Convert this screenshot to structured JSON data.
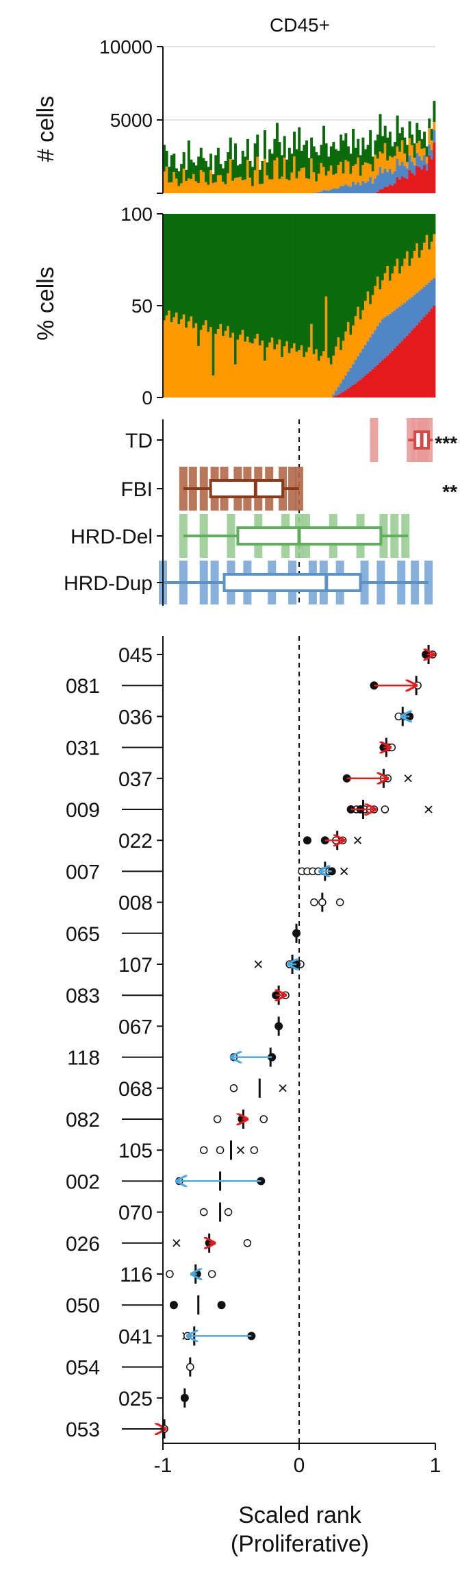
{
  "chart_data": [
    {
      "type": "bar",
      "title": "CD45+",
      "ylabel": "# cells",
      "ylim": [
        0,
        10000
      ],
      "yticks": [
        {
          "value": 0,
          "label": ""
        },
        {
          "value": 5000,
          "label": "5000"
        },
        {
          "value": 10000,
          "label": "10000"
        }
      ],
      "grid": true,
      "stacked": true,
      "series_colors": [
        "#E41A1C",
        "#4E86C6",
        "#FF9900",
        "#0B6B0B"
      ],
      "totals": [
        3300,
        2900,
        1800,
        2600,
        2700,
        1700,
        1500,
        2000,
        2800,
        1600,
        3600,
        2300,
        2100,
        1900,
        2500,
        3100,
        2400,
        2200,
        1800,
        2700,
        1300,
        2600,
        3100,
        2000,
        1700,
        2200,
        2800,
        3800,
        2300,
        3400,
        1900,
        2000,
        2900,
        2500,
        3700,
        2200,
        1800,
        3400,
        4000,
        1600,
        2200,
        4300,
        2100,
        3000,
        2700,
        3700,
        4800,
        3500,
        2600,
        3900,
        2300,
        3100,
        2700,
        4200,
        3000,
        4500,
        2900,
        3300,
        3600,
        2400,
        3800,
        3200,
        2800,
        2600,
        3300,
        4600,
        3400,
        2500,
        3200,
        3500,
        3000,
        2900,
        4000,
        3600,
        4100,
        3200,
        2700,
        4400,
        3100,
        3700,
        2600,
        3800,
        3000,
        3300,
        4300,
        2500,
        3600,
        4000,
        5400,
        3900,
        4600,
        3800,
        4200,
        3200,
        3500,
        5300,
        4100,
        4500,
        3800,
        3300,
        4900,
        4000,
        3400,
        4800,
        4300,
        3700,
        4200,
        3200,
        5100,
        4400,
        6300
      ]
    },
    {
      "type": "bar",
      "ylabel": "% cells",
      "ylim": [
        0,
        100
      ],
      "yticks": [
        {
          "value": 0,
          "label": "0"
        },
        {
          "value": 50,
          "label": "50"
        },
        {
          "value": 100,
          "label": "100"
        }
      ],
      "stacked": true,
      "series_colors": [
        "#E41A1C",
        "#4E86C6",
        "#FF9900",
        "#0B6B0B"
      ],
      "orange_top": [
        44,
        44,
        43,
        44,
        40,
        39,
        37,
        36,
        35,
        34,
        32,
        29,
        31,
        27,
        26,
        25,
        24,
        22,
        21,
        20,
        9,
        18,
        16,
        15,
        15,
        14,
        13,
        12,
        11,
        8,
        8,
        11,
        10,
        10,
        10,
        9,
        9,
        8,
        8,
        7,
        8,
        9,
        7,
        7,
        6,
        6,
        6,
        6,
        5,
        5,
        5,
        5,
        5,
        5,
        5,
        5,
        5,
        5,
        5,
        4,
        4,
        4,
        4,
        4,
        4,
        4,
        4,
        4,
        4,
        4,
        4,
        4,
        4,
        4,
        4,
        4,
        4,
        4,
        4,
        4,
        4,
        4,
        4,
        4,
        4,
        4,
        4,
        4,
        4,
        4,
        4,
        4,
        4,
        4,
        4,
        4,
        4,
        4,
        4,
        4,
        4,
        4,
        4,
        4,
        4,
        4,
        4,
        4,
        4,
        4,
        4
      ],
      "dips": [
        [
          9,
          38
        ],
        [
          14,
          28
        ],
        [
          20,
          12
        ],
        [
          29,
          18
        ],
        [
          35,
          30
        ],
        [
          41,
          20
        ],
        [
          48,
          22
        ],
        [
          54,
          25
        ],
        [
          60,
          40
        ],
        [
          66,
          55
        ]
      ],
      "tail_start": 68
    },
    {
      "type": "box",
      "xlim": [
        -1,
        1
      ],
      "categories": [
        "TD",
        "FBI",
        "HRD-Del",
        "HRD-Dup"
      ],
      "significance": [
        "***",
        "**",
        "",
        ""
      ],
      "colors": [
        "#D44A47",
        "#8B3A1A",
        "#5DAF5B",
        "#5B93C8"
      ],
      "fill_colors": [
        "#E89A97",
        "#B36848",
        "#9ACD93",
        "#7AA9D6"
      ],
      "boxes": [
        {
          "min": 0.8,
          "q1": 0.85,
          "median": 0.9,
          "q3": 0.95,
          "max": 0.98
        },
        {
          "min": -0.85,
          "q1": -0.65,
          "median": -0.32,
          "q3": -0.12,
          "max": 0.0
        },
        {
          "min": -0.85,
          "q1": -0.45,
          "median": 0.0,
          "q3": 0.6,
          "max": 0.8
        },
        {
          "min": -1.0,
          "q1": -0.55,
          "median": 0.2,
          "q3": 0.45,
          "max": 0.95
        }
      ],
      "strips": [
        [
          0.55,
          0.82,
          0.86,
          0.9,
          0.92,
          0.95
        ],
        [
          -0.85,
          -0.78,
          -0.7,
          -0.62,
          -0.55,
          -0.45,
          -0.38,
          -0.3,
          -0.22,
          -0.12,
          -0.05,
          0.0
        ],
        [
          -0.85,
          -0.7,
          -0.5,
          -0.3,
          -0.1,
          0.0,
          0.05,
          0.25,
          0.45,
          0.62,
          0.7,
          0.78
        ],
        [
          -1.0,
          -0.85,
          -0.7,
          -0.62,
          -0.5,
          -0.38,
          -0.2,
          -0.05,
          0.1,
          0.18,
          0.3,
          0.48,
          0.6,
          0.75,
          0.85,
          0.95
        ]
      ]
    },
    {
      "type": "scatter",
      "xlabel": "Scaled rank\n(Proliferative)",
      "xlim": [
        -1,
        1
      ],
      "xticks": [
        {
          "value": -1,
          "label": "-1"
        },
        {
          "value": 0,
          "label": "0"
        },
        {
          "value": 1,
          "label": "1"
        }
      ],
      "categories": [
        "045",
        "081",
        "036",
        "031",
        "037",
        "009",
        "022",
        "007",
        "008",
        "065",
        "107",
        "083",
        "067",
        "118",
        "068",
        "082",
        "105",
        "002",
        "070",
        "026",
        "116",
        "050",
        "041",
        "054",
        "025",
        "053"
      ],
      "arrow_colors": {
        "red": "#E41A1C",
        "blue": "#4AA7E0"
      },
      "rows": [
        {
          "median": 0.95,
          "filled": [
            0.93
          ],
          "open": [
            0.98
          ],
          "x": [],
          "arrow": [
            0.94,
            0.99,
            "red"
          ]
        },
        {
          "median": 0.86,
          "filled": [
            0.55
          ],
          "open": [
            0.87
          ],
          "x": [],
          "arrow": [
            0.55,
            0.86,
            "red"
          ]
        },
        {
          "median": 0.76,
          "filled": [
            0.81
          ],
          "open": [
            0.73,
            0.77
          ],
          "x": [],
          "arrow": [
            0.81,
            0.75,
            "blue"
          ]
        },
        {
          "median": 0.64,
          "filled": [
            0.62
          ],
          "open": [
            0.66,
            0.68
          ],
          "x": [],
          "arrow": [
            0.62,
            0.67,
            "red"
          ]
        },
        {
          "median": 0.62,
          "filled": [
            0.35
          ],
          "open": [
            0.62,
            0.65
          ],
          "x": [
            0.8
          ],
          "arrow": [
            0.35,
            0.65,
            "red"
          ]
        },
        {
          "median": 0.47,
          "filled": [
            0.38,
            0.45
          ],
          "open": [
            0.42,
            0.48,
            0.52,
            0.55,
            0.63
          ],
          "x": [
            0.95
          ],
          "arrow": [
            0.38,
            0.56,
            "red"
          ]
        },
        {
          "median": 0.28,
          "filled": [
            0.06,
            0.19
          ],
          "open": [
            0.27,
            0.32
          ],
          "x": [
            0.43
          ],
          "arrow": [
            0.19,
            0.33,
            "red"
          ]
        },
        {
          "median": 0.19,
          "filled": [
            0.24
          ],
          "open": [
            0.02,
            0.06,
            0.1,
            0.14,
            0.18,
            0.22
          ],
          "x": [
            0.33
          ],
          "arrow": [
            0.24,
            0.15,
            "blue"
          ]
        },
        {
          "median": 0.17,
          "filled": [],
          "open": [
            0.11,
            0.17,
            0.3
          ],
          "x": []
        },
        {
          "median": -0.02,
          "filled": [
            -0.02
          ],
          "open": [],
          "x": []
        },
        {
          "median": -0.05,
          "filled": [
            -0.02
          ],
          "open": [
            -0.07,
            0.01
          ],
          "x": [
            -0.3
          ],
          "arrow": [
            -0.02,
            -0.08,
            "blue"
          ]
        },
        {
          "median": -0.15,
          "filled": [
            -0.17
          ],
          "open": [
            -0.14,
            -0.1
          ],
          "x": [],
          "arrow": [
            -0.17,
            -0.1,
            "red"
          ]
        },
        {
          "median": -0.15,
          "filled": [
            -0.15
          ],
          "open": [],
          "x": []
        },
        {
          "median": -0.21,
          "filled": [
            -0.2
          ],
          "open": [
            -0.48
          ],
          "x": [],
          "arrow": [
            -0.2,
            -0.5,
            "blue"
          ]
        },
        {
          "median": -0.29,
          "filled": [],
          "open": [
            -0.48
          ],
          "x": [
            -0.12
          ],
          "arrow": []
        },
        {
          "median": -0.41,
          "filled": [
            -0.42
          ],
          "open": [
            -0.6,
            -0.26
          ],
          "x": [],
          "arrow": [
            -0.42,
            -0.38,
            "red"
          ]
        },
        {
          "median": -0.5,
          "filled": [],
          "open": [
            -0.7,
            -0.58,
            -0.33
          ],
          "x": [
            -0.43
          ]
        },
        {
          "median": -0.58,
          "filled": [
            -0.28
          ],
          "open": [
            -0.88
          ],
          "x": [],
          "arrow": [
            -0.28,
            -0.9,
            "blue"
          ]
        },
        {
          "median": -0.58,
          "filled": [],
          "open": [
            -0.7,
            -0.52
          ],
          "x": []
        },
        {
          "median": -0.66,
          "filled": [
            -0.66
          ],
          "open": [
            -0.38
          ],
          "x": [
            -0.9
          ],
          "arrow": [
            -0.66,
            -0.62,
            "red"
          ]
        },
        {
          "median": -0.76,
          "filled": [
            -0.75
          ],
          "open": [
            -0.95,
            -0.64
          ],
          "x": [],
          "arrow": [
            -0.75,
            -0.79,
            "blue"
          ]
        },
        {
          "median": -0.74,
          "filled": [
            -0.92,
            -0.57
          ],
          "open": [],
          "x": []
        },
        {
          "median": -0.77,
          "filled": [
            -0.35
          ],
          "open": [
            -0.82
          ],
          "x": [
            -0.83
          ],
          "arrow": [
            -0.35,
            -0.82,
            "blue"
          ]
        },
        {
          "median": -0.8,
          "filled": [],
          "open": [
            -0.8
          ],
          "x": []
        },
        {
          "median": -0.84,
          "filled": [
            -0.84
          ],
          "open": [],
          "x": []
        },
        {
          "median": -0.99,
          "filled": [],
          "open": [
            -0.99
          ],
          "x": [],
          "arrow": [
            -1.0,
            -0.98,
            "red"
          ]
        }
      ]
    }
  ]
}
